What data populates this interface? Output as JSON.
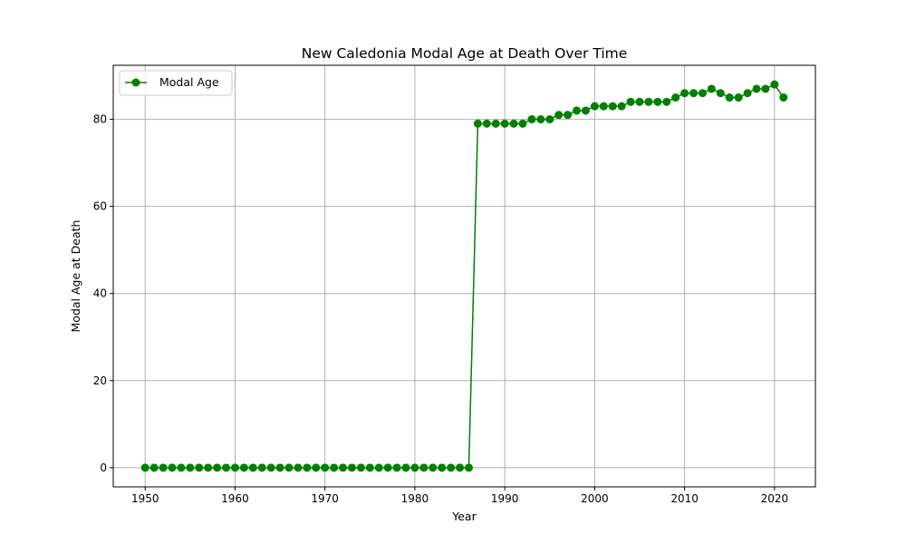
{
  "chart_data": {
    "type": "line",
    "title": "New Caledonia Modal Age at Death Over Time",
    "xlabel": "Year",
    "ylabel": "Modal Age at Death",
    "xlim": [
      1946.45,
      2024.55
    ],
    "ylim": [
      -4.4,
      92.4
    ],
    "xticks": [
      1950,
      1960,
      1970,
      1980,
      1990,
      2000,
      2010,
      2020
    ],
    "yticks": [
      0,
      20,
      40,
      60,
      80
    ],
    "grid": true,
    "legend": "upper left",
    "series": [
      {
        "name": "Modal Age",
        "color": "#008000",
        "marker": "circle",
        "x": [
          1950,
          1951,
          1952,
          1953,
          1954,
          1955,
          1956,
          1957,
          1958,
          1959,
          1960,
          1961,
          1962,
          1963,
          1964,
          1965,
          1966,
          1967,
          1968,
          1969,
          1970,
          1971,
          1972,
          1973,
          1974,
          1975,
          1976,
          1977,
          1978,
          1979,
          1980,
          1981,
          1982,
          1983,
          1984,
          1985,
          1986,
          1987,
          1988,
          1989,
          1990,
          1991,
          1992,
          1993,
          1994,
          1995,
          1996,
          1997,
          1998,
          1999,
          2000,
          2001,
          2002,
          2003,
          2004,
          2005,
          2006,
          2007,
          2008,
          2009,
          2010,
          2011,
          2012,
          2013,
          2014,
          2015,
          2016,
          2017,
          2018,
          2019,
          2020,
          2021
        ],
        "y": [
          0,
          0,
          0,
          0,
          0,
          0,
          0,
          0,
          0,
          0,
          0,
          0,
          0,
          0,
          0,
          0,
          0,
          0,
          0,
          0,
          0,
          0,
          0,
          0,
          0,
          0,
          0,
          0,
          0,
          0,
          0,
          0,
          0,
          0,
          0,
          0,
          0,
          79,
          79,
          79,
          79,
          79,
          79,
          80,
          80,
          80,
          81,
          81,
          82,
          82,
          83,
          83,
          83,
          83,
          84,
          84,
          84,
          84,
          84,
          85,
          86,
          86,
          86,
          87,
          86,
          85,
          85,
          86,
          87,
          87,
          88,
          85
        ]
      }
    ]
  }
}
